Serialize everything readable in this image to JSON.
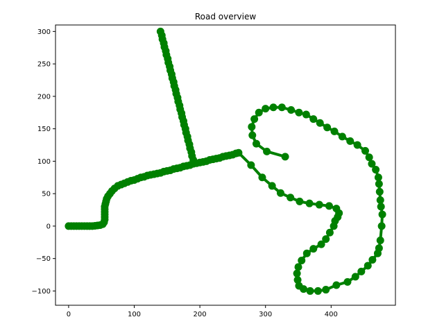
{
  "chart_data": {
    "type": "scatter",
    "title": "Road overview",
    "xlabel": "",
    "ylabel": "",
    "xlim": [
      -20,
      498
    ],
    "ylim": [
      -122,
      310
    ],
    "xticks": [
      0,
      100,
      200,
      300,
      400
    ],
    "yticks": [
      -100,
      -50,
      0,
      50,
      100,
      150,
      200,
      250,
      300
    ],
    "grid": false,
    "legend": "none",
    "color": "#008000",
    "series": [
      {
        "points": [
          [
            0,
            0
          ],
          [
            4,
            0
          ],
          [
            8,
            0
          ],
          [
            12,
            0
          ],
          [
            16,
            0
          ],
          [
            20,
            0
          ],
          [
            24,
            0
          ],
          [
            28,
            0
          ],
          [
            32,
            0
          ],
          [
            36,
            0
          ],
          [
            40,
            0.5
          ],
          [
            44,
            1
          ],
          [
            48,
            1.5
          ],
          [
            52,
            3
          ],
          [
            54,
            6
          ],
          [
            55,
            10
          ],
          [
            55,
            14
          ],
          [
            55,
            18
          ],
          [
            55,
            22
          ],
          [
            55,
            26
          ],
          [
            55,
            30
          ],
          [
            56,
            34
          ],
          [
            57,
            38
          ],
          [
            58,
            42
          ],
          [
            60,
            46
          ],
          [
            63,
            50
          ],
          [
            66,
            54
          ],
          [
            70,
            58
          ],
          [
            75,
            62
          ],
          [
            80,
            64
          ],
          [
            85,
            66
          ],
          [
            90,
            68
          ],
          [
            95,
            70
          ],
          [
            100,
            71
          ],
          [
            105,
            73
          ],
          [
            110,
            75
          ],
          [
            115,
            76
          ],
          [
            120,
            78
          ],
          [
            125,
            79
          ],
          [
            130,
            80
          ],
          [
            135,
            81
          ],
          [
            140,
            82
          ],
          [
            145,
            84
          ],
          [
            150,
            85
          ],
          [
            155,
            86
          ],
          [
            160,
            88
          ],
          [
            165,
            89
          ],
          [
            170,
            90
          ],
          [
            175,
            92
          ],
          [
            180,
            93
          ],
          [
            185,
            94
          ],
          [
            190,
            96
          ],
          [
            195,
            97
          ],
          [
            200,
            98
          ],
          [
            205,
            99
          ],
          [
            210,
            100
          ],
          [
            215,
            102
          ],
          [
            220,
            103
          ],
          [
            225,
            104
          ],
          [
            230,
            105
          ],
          [
            235,
            107
          ],
          [
            240,
            108
          ],
          [
            245,
            109
          ],
          [
            250,
            110
          ],
          [
            255,
            112
          ],
          [
            259,
            113
          ],
          [
            278,
            94
          ],
          [
            295,
            75
          ],
          [
            310,
            62
          ],
          [
            323,
            51
          ],
          [
            338,
            44
          ],
          [
            352,
            38
          ],
          [
            367,
            35
          ],
          [
            382,
            33
          ],
          [
            397,
            31
          ],
          [
            408,
            27
          ],
          [
            412,
            20
          ],
          [
            410,
            14
          ],
          [
            406,
            8
          ],
          [
            404,
            0
          ],
          [
            398,
            -10
          ],
          [
            392,
            -20
          ],
          [
            385,
            -28
          ],
          [
            373,
            -35
          ],
          [
            363,
            -42
          ],
          [
            355,
            -53
          ],
          [
            350,
            -63
          ],
          [
            348,
            -73
          ],
          [
            349,
            -83
          ],
          [
            351,
            -92
          ],
          [
            358,
            -97
          ],
          [
            368,
            -100
          ],
          [
            380,
            -100
          ],
          [
            392,
            -98
          ],
          [
            408,
            -91
          ],
          [
            425,
            -86
          ],
          [
            437,
            -78
          ],
          [
            446,
            -70
          ],
          [
            456,
            -61
          ],
          [
            463,
            -52
          ],
          [
            471,
            -42
          ],
          [
            473,
            -34
          ],
          [
            475,
            -22
          ],
          [
            477,
            0
          ],
          [
            478,
            18
          ],
          [
            476,
            30
          ],
          [
            475,
            40
          ],
          [
            474,
            53
          ],
          [
            473,
            65
          ],
          [
            472,
            75
          ],
          [
            468,
            87
          ],
          [
            462,
            96
          ],
          [
            458,
            106
          ],
          [
            452,
            116
          ],
          [
            440,
            125
          ],
          [
            429,
            131
          ],
          [
            417,
            138
          ],
          [
            405,
            146
          ],
          [
            394,
            152
          ],
          [
            383,
            159
          ],
          [
            373,
            165
          ],
          [
            362,
            172
          ],
          [
            351,
            175
          ],
          [
            339,
            179
          ],
          [
            325,
            183
          ],
          [
            312,
            183
          ],
          [
            300,
            181
          ],
          [
            290,
            175
          ],
          [
            283,
            165
          ],
          [
            279,
            153
          ],
          [
            280,
            140
          ],
          [
            286,
            127
          ],
          [
            302,
            115
          ],
          [
            330,
            107
          ]
        ]
      },
      {
        "points": [
          [
            140,
            300
          ],
          [
            142,
            294
          ],
          [
            143,
            288
          ],
          [
            145,
            282
          ],
          [
            146,
            276
          ],
          [
            148,
            270
          ],
          [
            149,
            264
          ],
          [
            151,
            258
          ],
          [
            152,
            252
          ],
          [
            154,
            246
          ],
          [
            155,
            240
          ],
          [
            157,
            234
          ],
          [
            158,
            228
          ],
          [
            160,
            222
          ],
          [
            161,
            216
          ],
          [
            163,
            210
          ],
          [
            164,
            204
          ],
          [
            166,
            198
          ],
          [
            167,
            192
          ],
          [
            169,
            186
          ],
          [
            170,
            180
          ],
          [
            172,
            174
          ],
          [
            173,
            168
          ],
          [
            175,
            162
          ],
          [
            176,
            156
          ],
          [
            178,
            150
          ],
          [
            179,
            144
          ],
          [
            181,
            138
          ],
          [
            182,
            132
          ],
          [
            184,
            126
          ],
          [
            185,
            120
          ],
          [
            187,
            114
          ],
          [
            188,
            108
          ],
          [
            190,
            102
          ],
          [
            191,
            98
          ]
        ]
      }
    ]
  }
}
